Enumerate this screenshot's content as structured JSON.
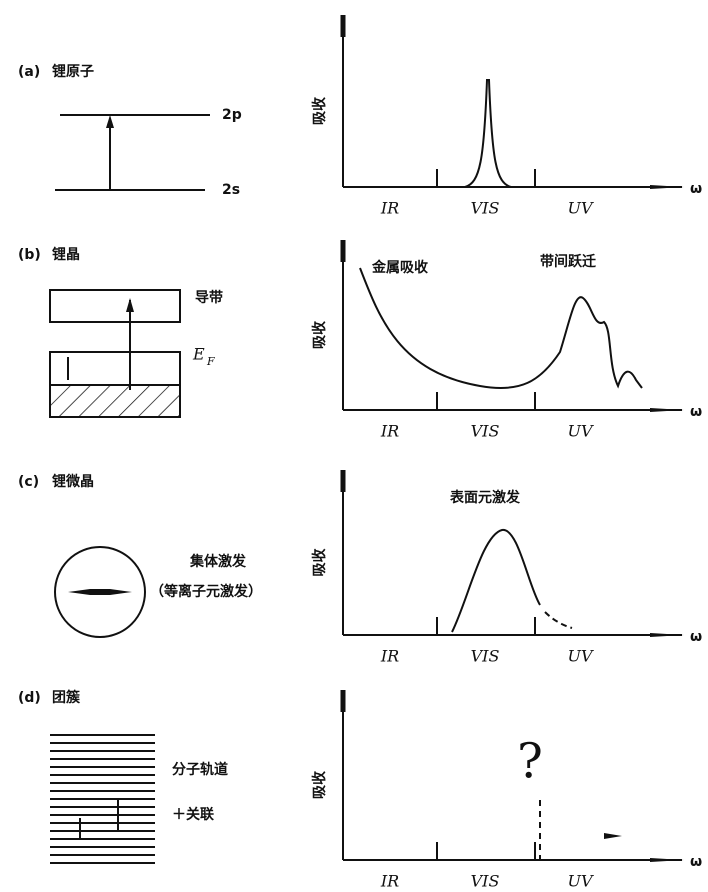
{
  "panels": [
    {
      "tag": "(a)",
      "title": "锂原子",
      "levels": [
        "2p",
        "2s"
      ],
      "y_axis_label": "吸收",
      "x_labels": [
        "IR",
        "VIS",
        "UV"
      ],
      "x_axis_symbol": "ω"
    },
    {
      "tag": "(b)",
      "title": "锂晶",
      "band_label": "导带",
      "fermi": {
        "main": "E",
        "sub": "F"
      },
      "annotations": [
        "金属吸收",
        "带间跃迁"
      ],
      "y_axis_label": "吸收",
      "x_labels": [
        "IR",
        "VIS",
        "UV"
      ],
      "x_axis_symbol": "ω"
    },
    {
      "tag": "(c)",
      "title": "锂微晶",
      "mode_labels": [
        "集体激发",
        "（等离子元激发）"
      ],
      "annotations": [
        "表面元激发"
      ],
      "y_axis_label": "吸收",
      "x_labels": [
        "IR",
        "VIS",
        "UV"
      ],
      "x_axis_symbol": "ω"
    },
    {
      "tag": "(d)",
      "title": "团簇",
      "mode_labels": [
        "分子轨道",
        "＋关联"
      ],
      "annotations": [
        "?"
      ],
      "y_axis_label": "吸收",
      "x_labels": [
        "IR",
        "VIS",
        "UV"
      ],
      "x_axis_symbol": "ω"
    }
  ]
}
